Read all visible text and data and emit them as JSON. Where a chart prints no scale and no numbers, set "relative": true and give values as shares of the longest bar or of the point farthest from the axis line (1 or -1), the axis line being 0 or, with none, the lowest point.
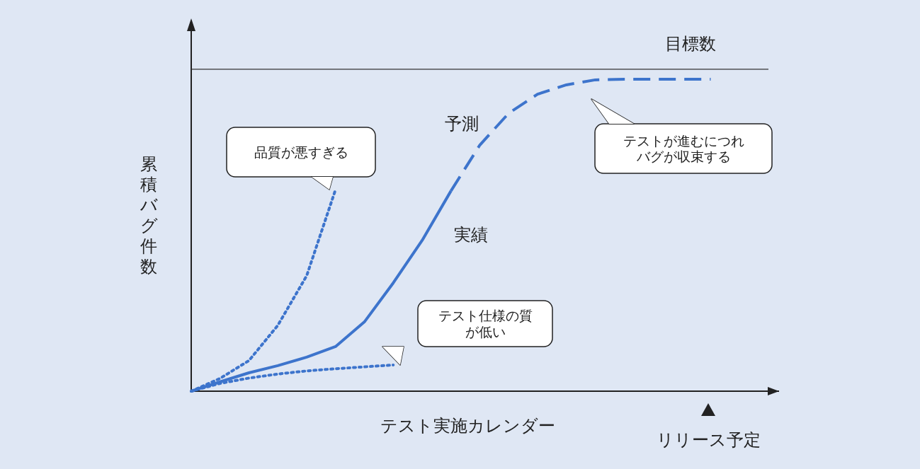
{
  "chart_data": {
    "type": "line",
    "relative": true,
    "xlabel": "テスト実施カレンダー",
    "ylabel": "累積バグ件数",
    "categories": [
      null,
      null,
      null,
      null,
      null,
      null,
      null,
      null,
      null,
      null,
      null,
      null,
      null,
      null,
      null,
      null,
      null,
      null,
      null,
      null,
      null
    ],
    "series": [
      {
        "name": "実績",
        "color": "#3d74cc",
        "line_style": "solid",
        "values": [
          0,
          0.03,
          0.059,
          0.082,
          0.109,
          0.143,
          0.222,
          0.347,
          0.483,
          0.642,
          null,
          null,
          null,
          null,
          null,
          null,
          null,
          null,
          null,
          null,
          null
        ]
      },
      {
        "name": "予測",
        "color": "#3d74cc",
        "line_style": "dashed",
        "values": [
          null,
          null,
          null,
          null,
          null,
          null,
          null,
          null,
          null,
          0.642,
          0.789,
          0.891,
          0.952,
          0.982,
          0.998,
          1,
          1,
          1,
          1,
          null,
          null
        ]
      },
      {
        "color": "#3d74cc",
        "line_style": "dotted",
        "values": [
          0,
          0.041,
          0.098,
          0.211,
          0.37,
          0.646,
          null,
          null,
          null,
          null,
          null,
          null,
          null,
          null,
          null,
          null,
          null,
          null,
          null,
          null,
          null
        ]
      },
      {
        "color": "#3d74cc",
        "line_style": "dotted",
        "values": [
          0,
          0.025,
          0.042,
          0.055,
          0.065,
          0.072,
          0.078,
          0.084,
          null,
          null,
          null,
          null,
          null,
          null,
          null,
          null,
          null,
          null,
          null,
          null,
          null
        ]
      }
    ],
    "ref_lines": [
      {
        "axis": "y",
        "value": 1.032,
        "label": "目標数",
        "color": "#333333"
      }
    ],
    "annotations": [
      "品質が悪すぎる",
      "テスト仕様の質が低い",
      "テストが進むにつれバグが収束する",
      "リリース予定"
    ]
  }
}
